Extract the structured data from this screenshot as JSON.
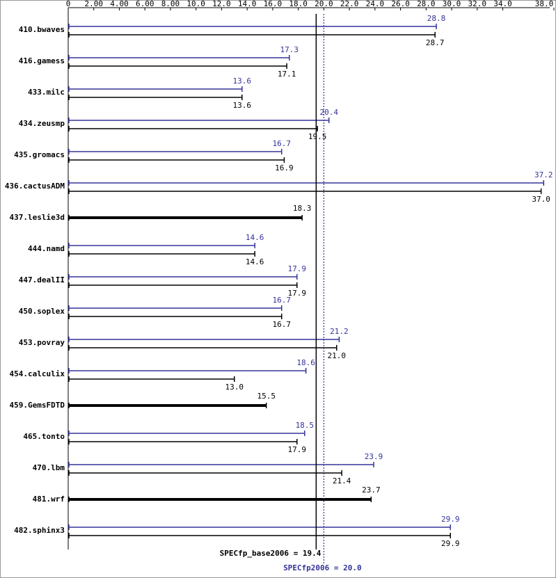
{
  "chart_data": {
    "type": "bar",
    "orientation": "horizontal",
    "categories": [
      "410.bwaves",
      "416.gamess",
      "433.milc",
      "434.zeusmp",
      "435.gromacs",
      "436.cactusADM",
      "437.leslie3d",
      "444.namd",
      "447.dealII",
      "450.soplex",
      "453.povray",
      "454.calculix",
      "459.GemsFDTD",
      "465.tonto",
      "470.lbm",
      "481.wrf",
      "482.sphinx3"
    ],
    "series": [
      {
        "color": "#333399",
        "values": [
          28.8,
          17.3,
          13.6,
          20.4,
          16.7,
          37.2,
          null,
          14.6,
          17.9,
          16.7,
          21.2,
          18.6,
          null,
          18.5,
          23.9,
          null,
          29.9
        ],
        "value_labels": [
          "28.8",
          "17.3",
          "13.6",
          "20.4",
          "16.7",
          "37.2",
          null,
          "14.6",
          "17.9",
          "16.7",
          "21.2",
          "18.6",
          null,
          "18.5",
          "23.9",
          null,
          "29.9"
        ]
      },
      {
        "color": "#000000",
        "values": [
          28.7,
          17.1,
          13.6,
          19.5,
          16.9,
          37.0,
          18.3,
          14.6,
          17.9,
          16.7,
          21.0,
          13.0,
          15.5,
          17.9,
          21.4,
          23.7,
          29.9
        ],
        "value_labels": [
          "28.7",
          "17.1",
          "13.6",
          "19.5",
          "16.9",
          "37.0",
          "18.3",
          "14.6",
          "17.9",
          "16.7",
          "21.0",
          "13.0",
          "15.5",
          "17.9",
          "21.4",
          "23.7",
          "29.9"
        ]
      }
    ],
    "xlim": [
      0,
      38
    ],
    "xticks": [
      0,
      {
        "value": 2,
        "label": "2.00"
      },
      {
        "value": 4,
        "label": "4.00"
      },
      {
        "value": 6,
        "label": "6.00"
      },
      {
        "value": 8,
        "label": "8.00"
      },
      {
        "value": 10,
        "label": "10.0"
      },
      {
        "value": 12,
        "label": "12.0"
      },
      {
        "value": 14,
        "label": "14.0"
      },
      {
        "value": 16,
        "label": "16.0"
      },
      {
        "value": 18,
        "label": "18.0"
      },
      {
        "value": 20,
        "label": "20.0"
      },
      {
        "value": 22,
        "label": "22.0"
      },
      {
        "value": 24,
        "label": "24.0"
      },
      {
        "value": 26,
        "label": "26.0"
      },
      {
        "value": 28,
        "label": "28.0"
      },
      {
        "value": 30,
        "label": "30.0"
      },
      {
        "value": 32,
        "label": "32.0"
      },
      {
        "value": 34,
        "label": "34.0"
      },
      {
        "value": 38,
        "label": "38.0"
      }
    ],
    "reference_lines": [
      {
        "label": "SPECfp_base2006 = 19.4",
        "value": 19.4,
        "color": "#000000"
      },
      {
        "label": "SPECfp2006 = 20.0",
        "value": 20.0,
        "color": "#333399"
      }
    ]
  }
}
